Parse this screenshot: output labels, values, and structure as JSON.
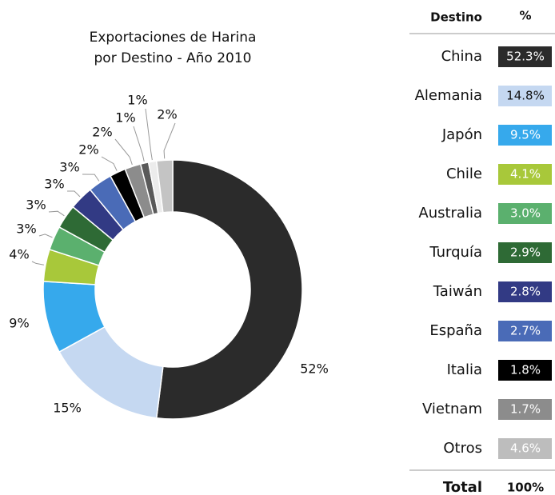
{
  "chart_data": {
    "type": "donut",
    "title": [
      "Exportaciones de Harina",
      "por Destino - Año 2010"
    ],
    "values": [
      52,
      15,
      9,
      4,
      3,
      3,
      3,
      3,
      2,
      2,
      1,
      1,
      2
    ],
    "value_labels": [
      "52%",
      "15%",
      "9%",
      "4%",
      "3%",
      "3%",
      "3%",
      "3%",
      "2%",
      "2%",
      "1%",
      "1%",
      "2%"
    ],
    "colors": [
      "#2b2b2b",
      "#c5d8f1",
      "#36a9ec",
      "#a8c83a",
      "#5bb06e",
      "#2e6a35",
      "#323a84",
      "#4a6bb7",
      "#000000",
      "#8c8c8c",
      "#5a5a5a",
      "#ececec",
      "#c4c4c4"
    ]
  },
  "table": {
    "header": [
      "Destino",
      "%"
    ],
    "rows": [
      {
        "destino": "China",
        "pct": "52.3%",
        "color": "#2b2b2b"
      },
      {
        "destino": "Alemania",
        "pct": "14.8%",
        "color": "#c5d8f1"
      },
      {
        "destino": "Japón",
        "pct": "9.5%",
        "color": "#36a9ec"
      },
      {
        "destino": "Chile",
        "pct": "4.1%",
        "color": "#a8c83a"
      },
      {
        "destino": "Australia",
        "pct": "3.0%",
        "color": "#5bb06e"
      },
      {
        "destino": "Turquía",
        "pct": "2.9%",
        "color": "#2e6a35"
      },
      {
        "destino": "Taiwán",
        "pct": "2.8%",
        "color": "#323a84"
      },
      {
        "destino": "España",
        "pct": "2.7%",
        "color": "#4a6bb7"
      },
      {
        "destino": "Italia",
        "pct": "1.8%",
        "color": "#000000"
      },
      {
        "destino": "Vietnam",
        "pct": "1.7%",
        "color": "#8c8c8c"
      },
      {
        "destino": "Otros",
        "pct": "4.6%",
        "color": "#bdbdbd"
      }
    ],
    "footer": [
      "Total",
      "100%"
    ]
  }
}
